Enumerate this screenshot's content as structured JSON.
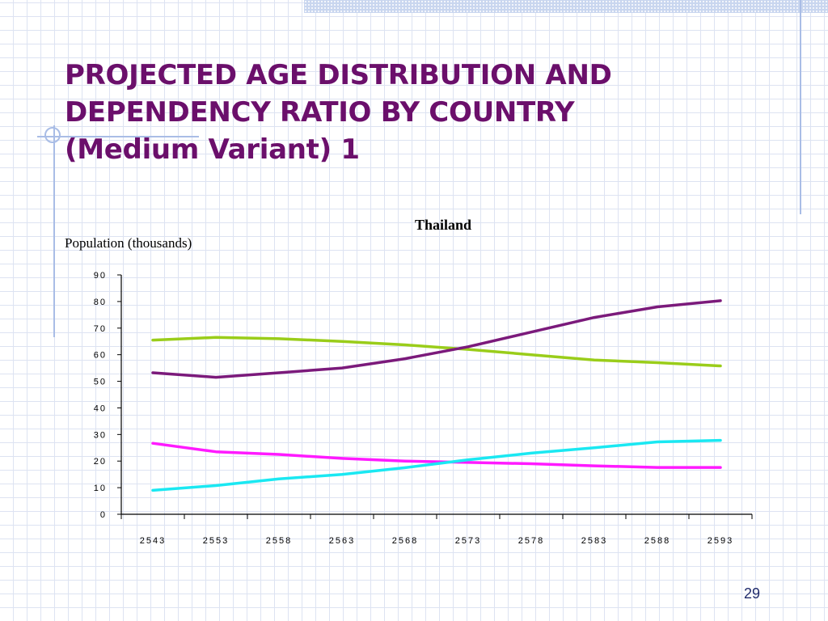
{
  "slide": {
    "title_lines": [
      "PROJECTED AGE DISTRIBUTION AND",
      "DEPENDENCY RATIO BY COUNTRY",
      "(Medium Variant) 1"
    ],
    "page_number": "29",
    "colors": {
      "title": "#6b0f6b",
      "grid": "#dde3f2",
      "accent": "#a9bde6",
      "page_number": "#1f2a6b"
    }
  },
  "chart_data": {
    "type": "line",
    "title": "Thailand",
    "xlabel": "",
    "ylabel": "Population (thousands)",
    "categories": [
      "2543",
      "2553",
      "2558",
      "2563",
      "2568",
      "2573",
      "2578",
      "2583",
      "2588",
      "2593"
    ],
    "ylim": [
      0,
      90
    ],
    "yticks": [
      "90",
      "80",
      "70",
      "60",
      "50",
      "40",
      "30",
      "20",
      "10",
      "0"
    ],
    "grid": false,
    "legend": "none",
    "series": [
      {
        "color": "#9acd1a",
        "values": [
          65.5,
          66.5,
          66,
          65,
          63.7,
          62,
          60,
          58,
          57,
          55.8
        ]
      },
      {
        "color": "#7b1a7b",
        "values": [
          53.2,
          51.5,
          53.2,
          55,
          58.5,
          63,
          68.5,
          74,
          78,
          80.3
        ]
      },
      {
        "color": "#ff1aff",
        "values": [
          26.7,
          23.5,
          22.5,
          21,
          20,
          19.5,
          19,
          18.2,
          17.6,
          17.6
        ]
      },
      {
        "color": "#1ae8f2",
        "values": [
          9,
          10.8,
          13.3,
          15,
          17.5,
          20.5,
          23,
          25,
          27.2,
          27.8
        ]
      }
    ]
  }
}
